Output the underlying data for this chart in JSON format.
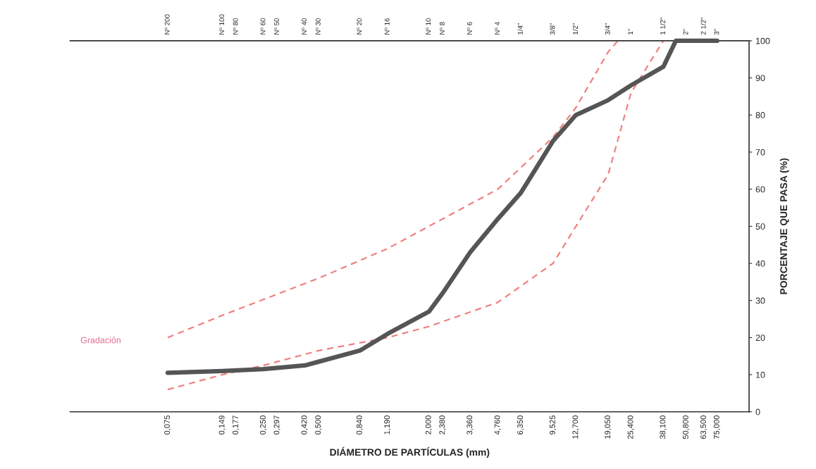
{
  "chart_data": {
    "type": "line",
    "xlabel": "DIÁMETRO DE PARTÍCULAS (mm)",
    "ylabel": "PORCENTAJE QUE PASA (%)",
    "log": "x",
    "xlim": [
      0.022,
      112
    ],
    "ylim": [
      0,
      100
    ],
    "xticks": [
      {
        "value": 0.075,
        "label": "0,075"
      },
      {
        "value": 0.149,
        "label": "0,149"
      },
      {
        "value": 0.177,
        "label": "0,177"
      },
      {
        "value": 0.25,
        "label": "0,250"
      },
      {
        "value": 0.297,
        "label": "0,297"
      },
      {
        "value": 0.42,
        "label": "0,420"
      },
      {
        "value": 0.5,
        "label": "0,500"
      },
      {
        "value": 0.84,
        "label": "0,840"
      },
      {
        "value": 1.19,
        "label": "1,190"
      },
      {
        "value": 2.0,
        "label": "2,000"
      },
      {
        "value": 2.38,
        "label": "2,380"
      },
      {
        "value": 3.36,
        "label": "3,360"
      },
      {
        "value": 4.76,
        "label": "4,760"
      },
      {
        "value": 6.35,
        "label": "6,350"
      },
      {
        "value": 9.525,
        "label": "9,525"
      },
      {
        "value": 12.7,
        "label": "12,700"
      },
      {
        "value": 19.05,
        "label": "19,050"
      },
      {
        "value": 25.4,
        "label": "25,400"
      },
      {
        "value": 38.1,
        "label": "38,100"
      },
      {
        "value": 50.8,
        "label": "50,800"
      },
      {
        "value": 63.5,
        "label": "63,500"
      },
      {
        "value": 75,
        "label": "75,000"
      }
    ],
    "yticks": [
      0,
      10,
      20,
      30,
      40,
      50,
      60,
      70,
      80,
      90,
      100
    ],
    "grid": false,
    "legend": false,
    "marker": "none",
    "series": [
      {
        "color": "#555555",
        "line_style": "solid",
        "x": [
          0.075,
          0.149,
          0.25,
          0.42,
          0.5,
          0.84,
          1.19,
          2.0,
          2.38,
          3.36,
          4.76,
          6.35,
          9.525,
          12.7,
          19.05,
          25.4,
          38.1,
          44.6,
          50.8,
          63.5,
          75
        ],
        "values": [
          10.5,
          11,
          11.5,
          12.5,
          13.5,
          16.5,
          21,
          27,
          32,
          43,
          52,
          59,
          73,
          80,
          84,
          88,
          93,
          100,
          100,
          100,
          100
        ]
      },
      {
        "color": "#f08080",
        "line_style": "dashed",
        "x": [
          0.075,
          0.149,
          0.5,
          1.19,
          2.0,
          4.76,
          9.525,
          12.7,
          19.05,
          21.5
        ],
        "values": [
          20,
          26,
          36,
          44,
          50,
          60,
          74,
          82,
          97,
          100
        ]
      },
      {
        "color": "#f08080",
        "line_style": "dashed",
        "x": [
          0.075,
          0.149,
          0.25,
          0.5,
          1.19,
          2.0,
          4.76,
          9.525,
          12.7,
          19.05,
          25.4,
          38.1
        ],
        "values": [
          6,
          10,
          12.5,
          16.5,
          20,
          23,
          29.5,
          40,
          50,
          64,
          86,
          100
        ]
      }
    ],
    "annotations": [
      "Gradación",
      "Nº 200",
      "Nº 100",
      "Nº 80",
      "Nº 60",
      "Nº 50",
      "Nº 40",
      "Nº 30",
      "Nº 20",
      "Nº 16",
      "Nº 10",
      "Nº 8",
      "Nº 6",
      "Nº 4",
      "1/4\"",
      "3/8\"",
      "1/2\"",
      "3/4\"",
      "1\"",
      "1 1/2\"",
      "2\"",
      "2 1/2\"",
      "3\""
    ]
  }
}
